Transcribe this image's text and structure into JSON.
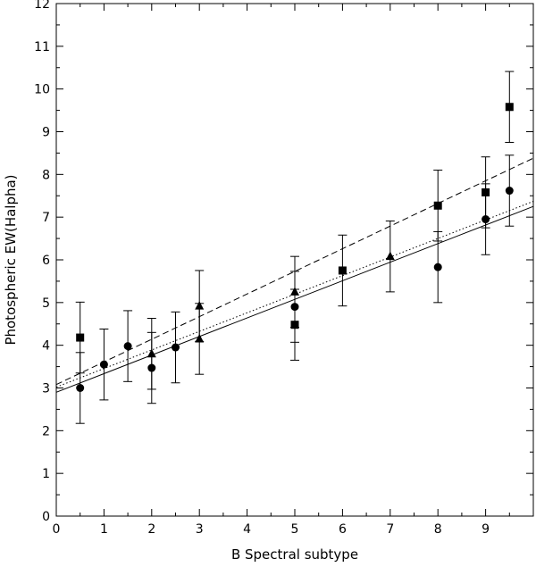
{
  "chart_data": {
    "type": "scatter",
    "xlabel": "B Spectral subtype",
    "ylabel": "Photospheric EW(Halpha)",
    "xlim": [
      0,
      10
    ],
    "ylim": [
      0,
      12
    ],
    "xticks": [
      0,
      1,
      2,
      3,
      4,
      5,
      6,
      7,
      8,
      9
    ],
    "yticks": [
      0,
      1,
      2,
      3,
      4,
      5,
      6,
      7,
      8,
      9,
      10,
      11,
      12
    ],
    "grid": false,
    "series": [
      {
        "marker": "circle",
        "points": [
          {
            "x": 0.5,
            "y": 3.0,
            "err": 0.83
          },
          {
            "x": 1.0,
            "y": 3.55,
            "err": 0.83
          },
          {
            "x": 1.5,
            "y": 3.98,
            "err": 0.83
          },
          {
            "x": 2.0,
            "y": 3.47,
            "err": 0.83
          },
          {
            "x": 2.5,
            "y": 3.95,
            "err": 0.83
          },
          {
            "x": 5.0,
            "y": 4.9,
            "err": 0.83
          },
          {
            "x": 8.0,
            "y": 5.83,
            "err": 0.83
          },
          {
            "x": 9.0,
            "y": 6.95,
            "err": 0.83
          },
          {
            "x": 9.5,
            "y": 7.62,
            "err": 0.83
          }
        ]
      },
      {
        "marker": "square",
        "points": [
          {
            "x": 0.5,
            "y": 4.18,
            "err": 0.83
          },
          {
            "x": 5.0,
            "y": 4.48,
            "err": 0.83
          },
          {
            "x": 6.0,
            "y": 5.75,
            "err": 0.83
          },
          {
            "x": 8.0,
            "y": 7.27,
            "err": 0.83
          },
          {
            "x": 9.0,
            "y": 7.58,
            "err": 0.83
          },
          {
            "x": 9.5,
            "y": 9.58,
            "err": 0.83
          }
        ]
      },
      {
        "marker": "triangle",
        "points": [
          {
            "x": 2.0,
            "y": 3.8,
            "err": 0.83
          },
          {
            "x": 3.0,
            "y": 4.92,
            "err": 0.83
          },
          {
            "x": 3.0,
            "y": 4.15,
            "err": 0.83
          },
          {
            "x": 5.0,
            "y": 5.25,
            "err": 0.83
          },
          {
            "x": 7.0,
            "y": 6.08,
            "err": 0.83
          }
        ]
      }
    ],
    "fits": [
      {
        "style": "solid",
        "x": [
          0,
          10
        ],
        "y": [
          2.9,
          7.25
        ]
      },
      {
        "style": "dotted",
        "x": [
          0,
          10
        ],
        "y": [
          3.02,
          7.37
        ]
      },
      {
        "style": "dashed",
        "x": [
          0,
          10
        ],
        "y": [
          3.08,
          8.38
        ]
      }
    ]
  }
}
